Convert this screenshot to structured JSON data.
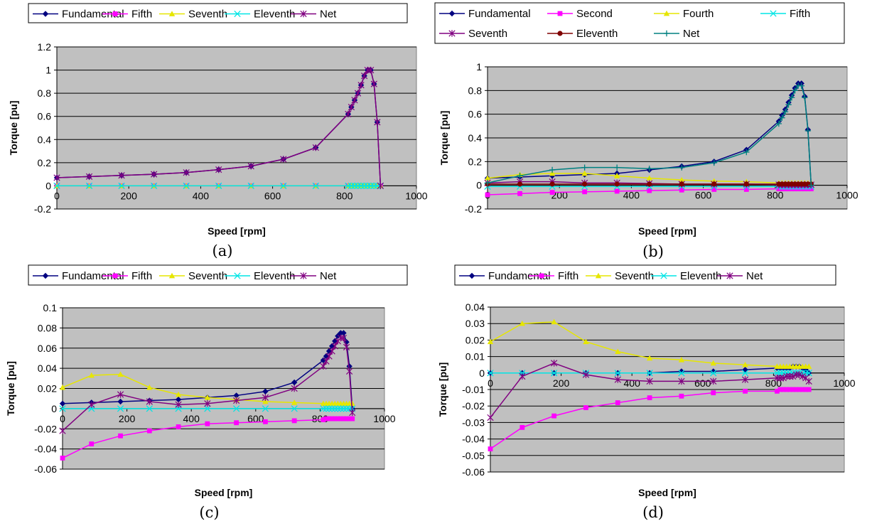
{
  "chart_data": [
    {
      "type": "line",
      "caption": "(a)",
      "xlabel": "Speed [rpm]",
      "ylabel": "Torque [pu]",
      "xlim": [
        0,
        1000
      ],
      "ylim": [
        -0.2,
        1.2
      ],
      "x_ticks": [
        "0",
        "200",
        "400",
        "600",
        "800",
        "1000"
      ],
      "y_ticks": [
        "-0.2",
        "0",
        "0.2",
        "0.4",
        "0.6",
        "0.8",
        "1",
        "1.2"
      ],
      "grid": "horizontal",
      "legend": "top",
      "x": [
        0,
        90,
        180,
        270,
        360,
        450,
        540,
        630,
        720,
        810,
        819,
        828,
        837,
        846,
        855,
        864,
        873,
        882,
        891,
        900
      ],
      "series": [
        {
          "name": "Fundamental",
          "color": "#000080",
          "marker": "diamond",
          "values": [
            0.07,
            0.08,
            0.09,
            0.1,
            0.115,
            0.14,
            0.17,
            0.23,
            0.33,
            0.62,
            0.68,
            0.74,
            0.8,
            0.87,
            0.95,
            1.0,
            1.0,
            0.88,
            0.55,
            0.0
          ]
        },
        {
          "name": "Fifth",
          "color": "#ff00ff",
          "marker": "square",
          "values": [
            0,
            0,
            0,
            0,
            0,
            0,
            0,
            0,
            0,
            0,
            0,
            0,
            0,
            0,
            0,
            0,
            0,
            0,
            0,
            0
          ]
        },
        {
          "name": "Seventh",
          "color": "#e6e600",
          "marker": "triangle",
          "values": [
            0,
            0,
            0,
            0,
            0,
            0,
            0,
            0,
            0,
            0,
            0,
            0,
            0,
            0,
            0,
            0,
            0,
            0,
            0,
            0
          ]
        },
        {
          "name": "Eleventh",
          "color": "#00e5e5",
          "marker": "x",
          "values": [
            0,
            0,
            0,
            0,
            0,
            0,
            0,
            0,
            0,
            0,
            0,
            0,
            0,
            0,
            0,
            0,
            0,
            0,
            0,
            0
          ]
        },
        {
          "name": "Net",
          "color": "#800080",
          "marker": "star",
          "values": [
            0.07,
            0.08,
            0.09,
            0.1,
            0.115,
            0.14,
            0.17,
            0.23,
            0.33,
            0.62,
            0.68,
            0.74,
            0.8,
            0.87,
            0.95,
            1.0,
            1.0,
            0.88,
            0.55,
            0.0
          ]
        }
      ]
    },
    {
      "type": "line",
      "caption": "(b)",
      "xlabel": "Speed [rpm]",
      "ylabel": "Torque [pu]",
      "xlim": [
        0,
        1000
      ],
      "ylim": [
        -0.2,
        1
      ],
      "x_ticks": [
        "0",
        "200",
        "400",
        "600",
        "800",
        "1000"
      ],
      "y_ticks": [
        "-0.2",
        "0",
        "0.2",
        "0.4",
        "0.6",
        "0.8",
        "1"
      ],
      "grid": "horizontal",
      "legend": "top",
      "x": [
        0,
        90,
        180,
        270,
        360,
        450,
        540,
        630,
        720,
        810,
        819,
        828,
        837,
        846,
        855,
        864,
        873,
        882,
        891,
        900
      ],
      "series": [
        {
          "name": "Fundamental",
          "color": "#000080",
          "marker": "diamond",
          "values": [
            0.06,
            0.07,
            0.08,
            0.09,
            0.1,
            0.13,
            0.16,
            0.2,
            0.3,
            0.54,
            0.59,
            0.64,
            0.7,
            0.76,
            0.82,
            0.86,
            0.86,
            0.75,
            0.47,
            0.0
          ]
        },
        {
          "name": "Second",
          "color": "#ff00ff",
          "marker": "square",
          "values": [
            -0.08,
            -0.07,
            -0.06,
            -0.055,
            -0.05,
            -0.045,
            -0.04,
            -0.035,
            -0.035,
            -0.03,
            -0.03,
            -0.03,
            -0.03,
            -0.03,
            -0.03,
            -0.03,
            -0.03,
            -0.03,
            -0.03,
            -0.03
          ]
        },
        {
          "name": "Fourth",
          "color": "#e6e600",
          "marker": "triangle",
          "values": [
            0.06,
            0.09,
            0.1,
            0.1,
            0.08,
            0.06,
            0.045,
            0.035,
            0.03,
            0.02,
            0.02,
            0.02,
            0.02,
            0.02,
            0.02,
            0.02,
            0.02,
            0.02,
            0.02,
            0.02
          ]
        },
        {
          "name": "Fifth",
          "color": "#00e5e5",
          "marker": "x",
          "values": [
            -0.01,
            -0.01,
            -0.01,
            -0.01,
            -0.01,
            -0.01,
            -0.01,
            -0.01,
            -0.01,
            -0.01,
            -0.01,
            -0.01,
            -0.01,
            -0.01,
            -0.01,
            -0.01,
            -0.01,
            -0.01,
            -0.01,
            -0.01
          ]
        },
        {
          "name": "Seventh",
          "color": "#800080",
          "marker": "star",
          "values": [
            0.02,
            0.03,
            0.03,
            0.02,
            0.02,
            0.015,
            0.01,
            0.01,
            0.01,
            0.005,
            0.005,
            0.005,
            0.005,
            0.005,
            0.005,
            0.005,
            0.005,
            0.005,
            0.005,
            0.005
          ]
        },
        {
          "name": "Eleventh",
          "color": "#800000",
          "marker": "circle",
          "values": [
            0.01,
            0.01,
            0.01,
            0.01,
            0.01,
            0.01,
            0.01,
            0.01,
            0.01,
            0.01,
            0.01,
            0.01,
            0.01,
            0.01,
            0.01,
            0.01,
            0.01,
            0.01,
            0.01,
            0.01
          ]
        },
        {
          "name": "Net",
          "color": "#008080",
          "marker": "plus",
          "values": [
            0.02,
            0.08,
            0.13,
            0.15,
            0.15,
            0.14,
            0.15,
            0.19,
            0.28,
            0.52,
            0.57,
            0.62,
            0.68,
            0.74,
            0.8,
            0.84,
            0.84,
            0.74,
            0.46,
            0.0
          ]
        }
      ]
    },
    {
      "type": "line",
      "caption": "(c)",
      "xlabel": "Speed [rpm]",
      "ylabel": "Torque [pu]",
      "xlim": [
        0,
        1000
      ],
      "ylim": [
        -0.06,
        0.1
      ],
      "x_ticks": [
        "0",
        "200",
        "400",
        "600",
        "800",
        "1000"
      ],
      "y_ticks": [
        "-0.06",
        "-0.04",
        "-0.02",
        "0",
        "0.02",
        "0.04",
        "0.06",
        "0.08",
        "0.1"
      ],
      "grid": "horizontal",
      "legend": "top",
      "x": [
        0,
        90,
        180,
        270,
        360,
        450,
        540,
        630,
        720,
        810,
        819,
        828,
        837,
        846,
        855,
        864,
        873,
        882,
        891,
        900
      ],
      "series": [
        {
          "name": "Fundamental",
          "color": "#000080",
          "marker": "diamond",
          "values": [
            0.005,
            0.006,
            0.007,
            0.008,
            0.009,
            0.011,
            0.013,
            0.017,
            0.026,
            0.048,
            0.052,
            0.057,
            0.062,
            0.067,
            0.072,
            0.075,
            0.075,
            0.066,
            0.042,
            0.0
          ]
        },
        {
          "name": "Fifth",
          "color": "#ff00ff",
          "marker": "square",
          "values": [
            -0.049,
            -0.035,
            -0.027,
            -0.022,
            -0.018,
            -0.015,
            -0.014,
            -0.013,
            -0.012,
            -0.011,
            -0.01,
            -0.01,
            -0.01,
            -0.01,
            -0.01,
            -0.01,
            -0.01,
            -0.01,
            -0.01,
            -0.01
          ]
        },
        {
          "name": "Seventh",
          "color": "#e6e600",
          "marker": "triangle",
          "values": [
            0.021,
            0.033,
            0.034,
            0.021,
            0.014,
            0.011,
            0.009,
            0.007,
            0.006,
            0.005,
            0.005,
            0.005,
            0.005,
            0.005,
            0.005,
            0.005,
            0.005,
            0.005,
            0.005,
            0.005
          ]
        },
        {
          "name": "Eleventh",
          "color": "#00e5e5",
          "marker": "x",
          "values": [
            0,
            0,
            0,
            0,
            0,
            0,
            0,
            0,
            0,
            0,
            0,
            0,
            0,
            0,
            0,
            0,
            0,
            0,
            0,
            0
          ]
        },
        {
          "name": "Net",
          "color": "#800080",
          "marker": "star",
          "values": [
            -0.022,
            0.004,
            0.014,
            0.007,
            0.004,
            0.005,
            0.008,
            0.011,
            0.02,
            0.042,
            0.047,
            0.052,
            0.057,
            0.062,
            0.067,
            0.07,
            0.07,
            0.061,
            0.037,
            -0.004
          ]
        }
      ]
    },
    {
      "type": "line",
      "caption": "(d)",
      "xlabel": "Speed [rpm]",
      "ylabel": "Torque [pu]",
      "xlim": [
        0,
        1000
      ],
      "ylim": [
        -0.06,
        0.04
      ],
      "x_ticks": [
        "0",
        "200",
        "400",
        "600",
        "800",
        "1000"
      ],
      "y_ticks": [
        "-0.06",
        "-0.05",
        "-0.04",
        "-0.03",
        "-0.02",
        "-0.01",
        "0",
        "0.01",
        "0.02",
        "0.03",
        "0.04"
      ],
      "grid": "horizontal",
      "legend": "top",
      "x": [
        0,
        90,
        180,
        270,
        360,
        450,
        540,
        630,
        720,
        810,
        819,
        828,
        837,
        846,
        855,
        864,
        873,
        882,
        891,
        900
      ],
      "series": [
        {
          "name": "Fundamental",
          "color": "#000080",
          "marker": "diamond",
          "values": [
            0.0,
            0.0,
            0.0,
            0.0,
            0.0,
            0.0,
            0.001,
            0.001,
            0.002,
            0.003,
            0.003,
            0.003,
            0.003,
            0.003,
            0.004,
            0.004,
            0.004,
            0.003,
            0.002,
            0.0
          ]
        },
        {
          "name": "Fifth",
          "color": "#ff00ff",
          "marker": "square",
          "values": [
            -0.046,
            -0.033,
            -0.026,
            -0.021,
            -0.018,
            -0.015,
            -0.014,
            -0.012,
            -0.011,
            -0.011,
            -0.01,
            -0.01,
            -0.01,
            -0.01,
            -0.01,
            -0.01,
            -0.01,
            -0.01,
            -0.01,
            -0.01
          ]
        },
        {
          "name": "Seventh",
          "color": "#e6e600",
          "marker": "triangle",
          "values": [
            0.019,
            0.03,
            0.031,
            0.019,
            0.013,
            0.009,
            0.008,
            0.006,
            0.005,
            0.004,
            0.004,
            0.004,
            0.004,
            0.004,
            0.004,
            0.004,
            0.004,
            0.004,
            0.004,
            0.004
          ]
        },
        {
          "name": "Eleventh",
          "color": "#00e5e5",
          "marker": "x",
          "values": [
            0,
            0,
            0,
            0,
            0,
            0,
            0,
            0,
            0,
            0,
            0,
            0,
            0,
            0,
            0,
            0,
            0,
            0,
            0,
            0
          ]
        },
        {
          "name": "Net",
          "color": "#800080",
          "marker": "star",
          "values": [
            -0.027,
            -0.002,
            0.006,
            -0.001,
            -0.004,
            -0.005,
            -0.005,
            -0.005,
            -0.004,
            -0.003,
            -0.003,
            -0.003,
            -0.002,
            -0.002,
            -0.002,
            -0.001,
            -0.001,
            -0.002,
            -0.003,
            -0.005
          ]
        }
      ]
    }
  ]
}
